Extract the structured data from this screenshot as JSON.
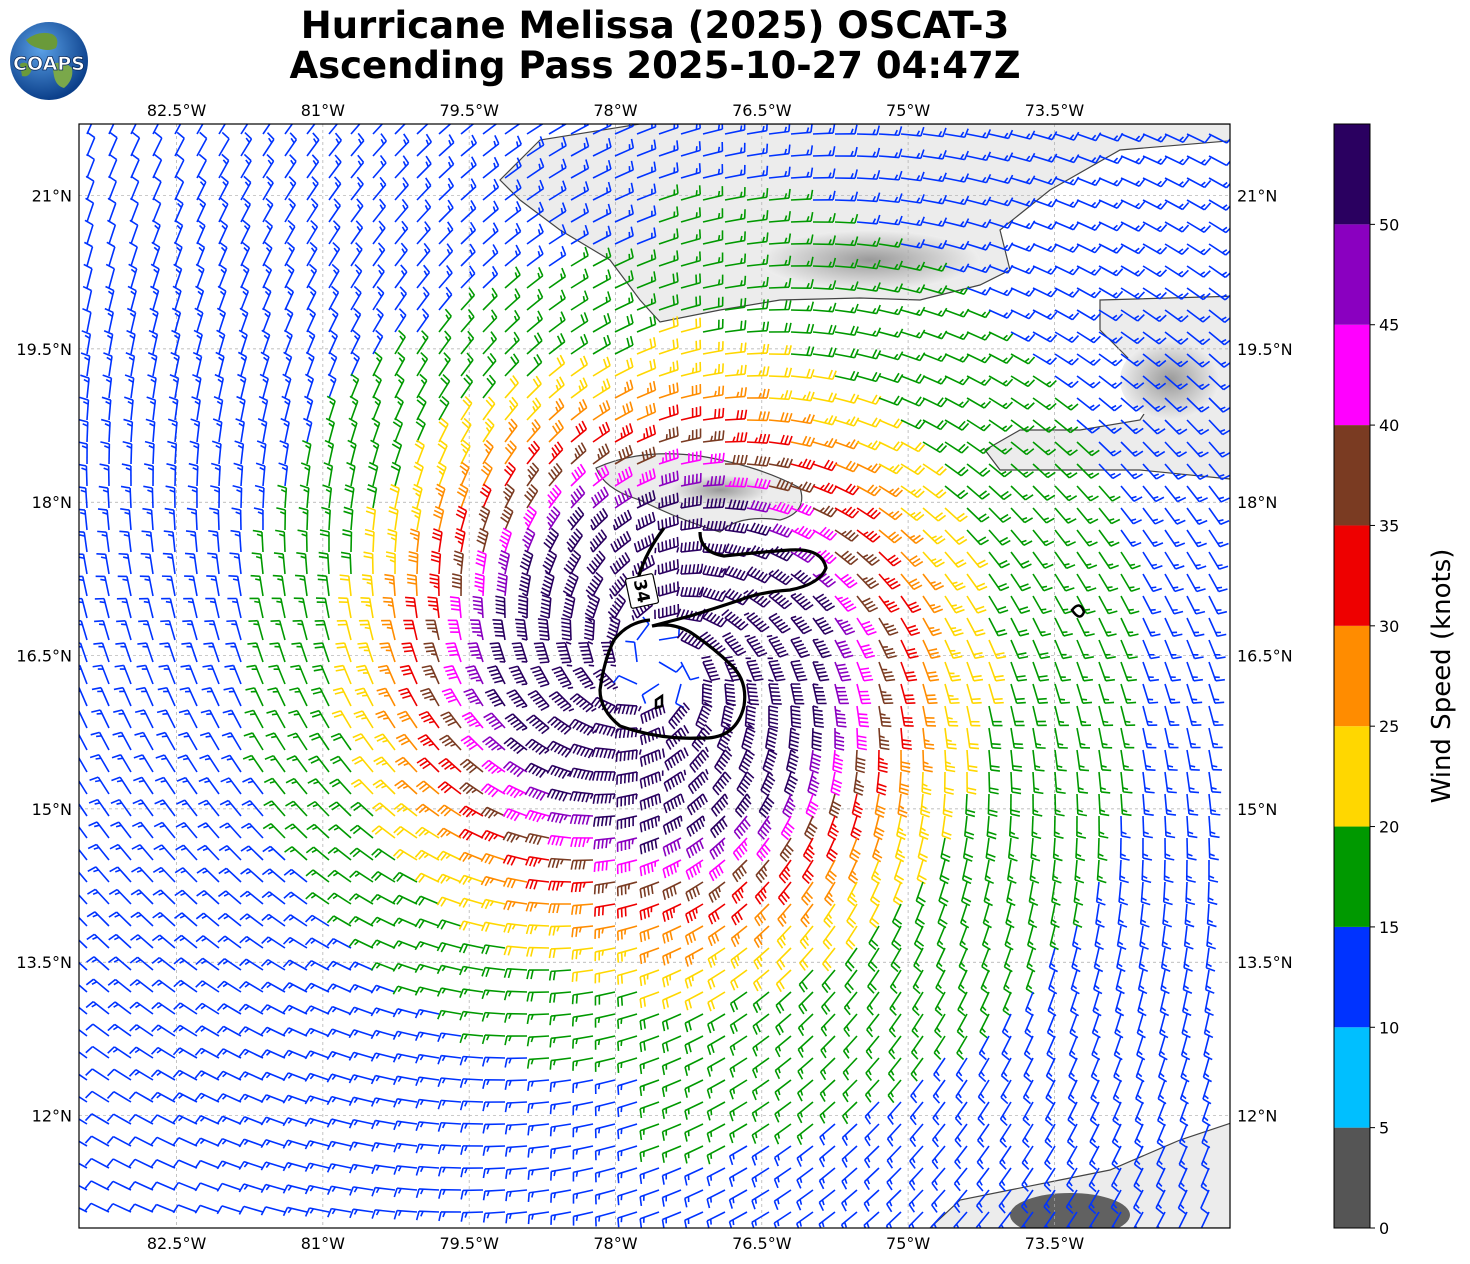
{
  "title_line1": "Hurricane Melissa (2025) OSCAT-3",
  "title_line2": "Ascending Pass 2025-10-27 04:47Z",
  "logo_text": "COAPS",
  "map": {
    "lon_range": [
      -83.5,
      -71.7
    ],
    "lat_range": [
      10.9,
      21.7
    ],
    "lon_ticks": [
      {
        "value": -82.5,
        "label": "82.5°W"
      },
      {
        "value": -81,
        "label": "81°W"
      },
      {
        "value": -79.5,
        "label": "79.5°W"
      },
      {
        "value": -78,
        "label": "78°W"
      },
      {
        "value": -76.5,
        "label": "76.5°W"
      },
      {
        "value": -75,
        "label": "75°W"
      },
      {
        "value": -73.5,
        "label": "73.5°W"
      }
    ],
    "lat_ticks": [
      {
        "value": 21,
        "label": "21°N"
      },
      {
        "value": 19.5,
        "label": "19.5°N"
      },
      {
        "value": 18,
        "label": "18°N"
      },
      {
        "value": 16.5,
        "label": "16.5°N"
      },
      {
        "value": 15,
        "label": "15°N"
      },
      {
        "value": 13.5,
        "label": "13.5°N"
      },
      {
        "value": 12,
        "label": "12°N"
      }
    ],
    "grid": true,
    "storm_center": {
      "lon": -77.6,
      "lat": 16.4
    },
    "contour_label": "34"
  },
  "colorbar": {
    "label": "Wind Speed (knots)",
    "bins": [
      {
        "from": 0,
        "to": 5,
        "color": "#555555"
      },
      {
        "from": 5,
        "to": 10,
        "color": "#00bfff"
      },
      {
        "from": 10,
        "to": 15,
        "color": "#0033ff"
      },
      {
        "from": 15,
        "to": 20,
        "color": "#009900"
      },
      {
        "from": 20,
        "to": 25,
        "color": "#ffd700"
      },
      {
        "from": 25,
        "to": 30,
        "color": "#ff8c00"
      },
      {
        "from": 30,
        "to": 35,
        "color": "#ee0000"
      },
      {
        "from": 35,
        "to": 40,
        "color": "#7a3b22"
      },
      {
        "from": 40,
        "to": 45,
        "color": "#ff00ff"
      },
      {
        "from": 45,
        "to": 50,
        "color": "#8a00c0"
      },
      {
        "from": 50,
        "to": 55,
        "color": "#2a0060"
      }
    ],
    "tick_labels": [
      "0",
      "5",
      "10",
      "15",
      "20",
      "25",
      "30",
      "35",
      "40",
      "45",
      "50"
    ]
  }
}
